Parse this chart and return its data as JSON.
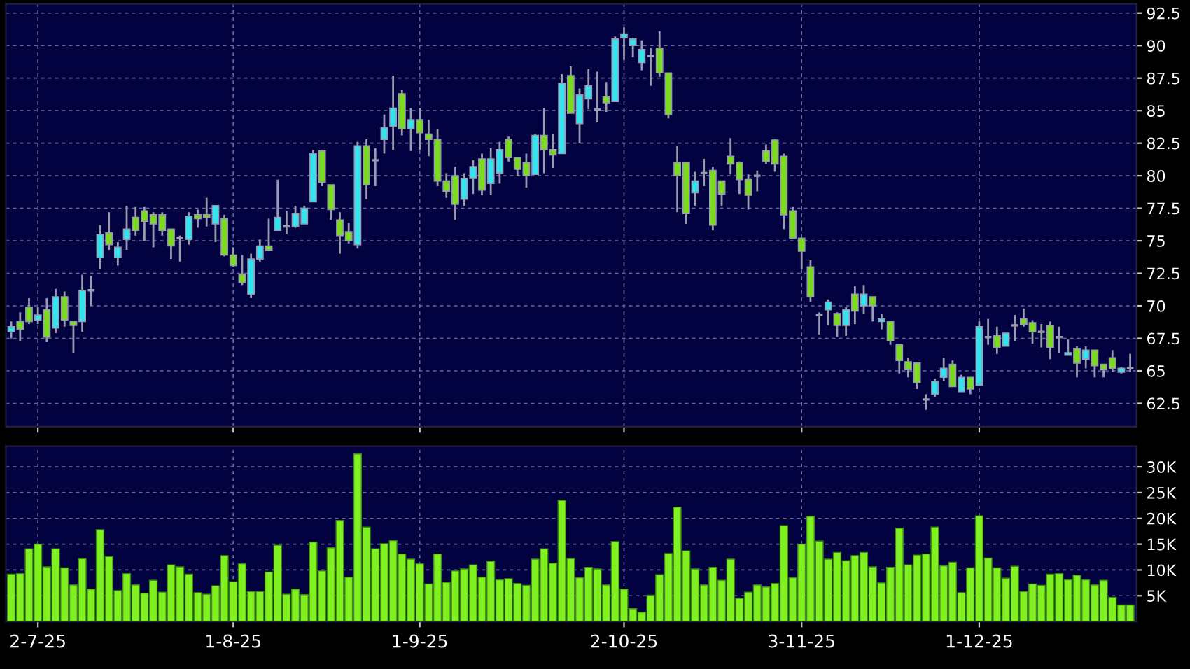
{
  "chart_data": [
    {
      "type": "candlestick",
      "tick_labels": "y",
      "grid": true,
      "colors": [
        "#33e3f0",
        "#7bdc1e",
        "#7bdc1e",
        "#33e3f0",
        "#7bdc1e",
        "#33e3f0",
        "#7bdc1e",
        "#7bdc1e",
        "#33e3f0",
        "#9a9ab0",
        "#33e3f0",
        "#7bdc1e",
        "#33e3f0",
        "#33e3f0",
        "#7bdc1e",
        "#7bdc1e",
        "#7bdc1e",
        "#7bdc1e",
        "#7bdc1e",
        "#9a9ab0",
        "#33e3f0",
        "#7bdc1e",
        "#7bdc1e",
        "#33e3f0",
        "#7bdc1e",
        "#7bdc1e",
        "#7bdc1e",
        "#33e3f0",
        "#33e3f0",
        "#7bdc1e",
        "#33e3f0",
        "#9a9ab0",
        "#33e3f0",
        "#33e3f0",
        "#33e3f0",
        "#7bdc1e",
        "#7bdc1e",
        "#7bdc1e",
        "#7bdc1e",
        "#33e3f0",
        "#7bdc1e",
        "#9a9ab0",
        "#33e3f0",
        "#33e3f0",
        "#7bdc1e",
        "#33e3f0",
        "#7bdc1e",
        "#7bdc1e",
        "#7bdc1e",
        "#7bdc1e",
        "#7bdc1e",
        "#33e3f0",
        "#33e3f0",
        "#7bdc1e",
        "#33e3f0",
        "#33e3f0",
        "#7bdc1e",
        "#7bdc1e",
        "#7bdc1e",
        "#33e3f0",
        "#7bdc1e",
        "#7bdc1e",
        "#33e3f0",
        "#7bdc1e",
        "#33e3f0",
        "#33e3f0",
        "#9a9ab0",
        "#7bdc1e",
        "#33e3f0",
        "#33e3f0",
        "#33e3f0",
        "#33e3f0",
        "#9a9ab0",
        "#7bdc1e",
        "#7bdc1e",
        "#7bdc1e",
        "#7bdc1e",
        "#33e3f0",
        "#9a9ab0",
        "#7bdc1e",
        "#7bdc1e",
        "#7bdc1e",
        "#7bdc1e",
        "#7bdc1e",
        "#9a9ab0",
        "#7bdc1e",
        "#7bdc1e",
        "#7bdc1e",
        "#7bdc1e",
        "#7bdc1e",
        "#7bdc1e",
        "#9a9ab0",
        "#33e3f0",
        "#7bdc1e",
        "#33e3f0",
        "#7bdc1e",
        "#33e3f0",
        "#7bdc1e",
        "#33e3f0",
        "#7bdc1e",
        "#7bdc1e",
        "#7bdc1e",
        "#7bdc1e",
        "#9a9ab0",
        "#33e3f0",
        "#33e3f0",
        "#7bdc1e",
        "#33e3f0",
        "#7bdc1e",
        "#33e3f0",
        "#9a9ab0",
        "#7bdc1e",
        "#33e3f0",
        "#9a9ab0",
        "#7bdc1e",
        "#7bdc1e",
        "#9a9ab0",
        "#7bdc1e",
        "#9a9ab0",
        "#33e3f0",
        "#7bdc1e",
        "#33e3f0",
        "#7bdc1e",
        "#7bdc1e",
        "#7bdc1e",
        "#33e3f0",
        "#9a9ab0"
      ],
      "categories": [
        null,
        null,
        null,
        null,
        null,
        null,
        null,
        null,
        null,
        null,
        null,
        null,
        null,
        null,
        null,
        null,
        null,
        null,
        null,
        null,
        null,
        null,
        null,
        null,
        null,
        null,
        null,
        null,
        null,
        null,
        null,
        null,
        null,
        null,
        null,
        null,
        null,
        null,
        null,
        null,
        null,
        null,
        null,
        null,
        null,
        null,
        null,
        null,
        null,
        null,
        null,
        null,
        null,
        null,
        null,
        null,
        null,
        null,
        null,
        null,
        null,
        null,
        null,
        null,
        null,
        null,
        null,
        null,
        null,
        null,
        null,
        null,
        null,
        null,
        null,
        null,
        null,
        null,
        null,
        null,
        null,
        null,
        null,
        null,
        null,
        null,
        null,
        null,
        null,
        null,
        null,
        null,
        null,
        null,
        null,
        null,
        null,
        null,
        null,
        null,
        null,
        null,
        null,
        null,
        null,
        null,
        null,
        null,
        null,
        null,
        null,
        null,
        null,
        null,
        null,
        null,
        null,
        null,
        null,
        null,
        null,
        null,
        null,
        null,
        null,
        null,
        null
      ],
      "ylim": [
        60.7,
        93.2
      ],
      "yticks": [
        62.5,
        65,
        67.5,
        70,
        72.5,
        75,
        77.5,
        80,
        82.5,
        85,
        87.5,
        90,
        92.5
      ],
      "ohlc": [
        [
          68.0,
          68.8,
          67.5,
          68.4
        ],
        [
          68.8,
          69.5,
          67.3,
          68.2
        ],
        [
          69.9,
          70.6,
          68.6,
          68.8
        ],
        [
          68.9,
          69.9,
          68.6,
          69.3
        ],
        [
          69.7,
          70.6,
          67.2,
          67.6
        ],
        [
          68.3,
          71.3,
          67.9,
          70.7
        ],
        [
          70.7,
          71.1,
          68.4,
          68.9
        ],
        [
          68.8,
          68.8,
          66.4,
          68.5
        ],
        [
          68.8,
          72.4,
          68.0,
          71.2
        ],
        [
          71.2,
          72.3,
          70.0,
          71.2
        ],
        [
          73.7,
          76.2,
          72.8,
          75.5
        ],
        [
          75.6,
          77.2,
          74.3,
          74.7
        ],
        [
          73.7,
          74.9,
          73.1,
          74.5
        ],
        [
          75.1,
          77.7,
          74.3,
          75.9
        ],
        [
          76.8,
          77.6,
          75.4,
          75.8
        ],
        [
          77.3,
          77.6,
          75.0,
          76.5
        ],
        [
          77.0,
          77.2,
          74.5,
          76.3
        ],
        [
          77.0,
          77.2,
          75.4,
          75.8
        ],
        [
          75.9,
          75.9,
          73.6,
          74.6
        ],
        [
          75.2,
          75.4,
          73.4,
          75.2
        ],
        [
          75.1,
          77.2,
          74.7,
          76.9
        ],
        [
          77.0,
          77.4,
          76.0,
          76.7
        ],
        [
          77.0,
          78.3,
          76.1,
          76.8
        ],
        [
          76.3,
          77.7,
          74.9,
          77.7
        ],
        [
          76.7,
          77.0,
          73.8,
          73.9
        ],
        [
          73.9,
          74.5,
          73.0,
          73.1
        ],
        [
          72.4,
          73.9,
          71.6,
          71.8
        ],
        [
          70.9,
          74.0,
          70.6,
          73.6
        ],
        [
          73.6,
          75.1,
          73.4,
          74.6
        ],
        [
          74.6,
          76.7,
          74.2,
          74.3
        ],
        [
          75.8,
          79.7,
          75.8,
          76.8
        ],
        [
          76.1,
          77.3,
          75.5,
          76.1
        ],
        [
          76.1,
          77.7,
          76.0,
          77.1
        ],
        [
          76.3,
          77.7,
          76.3,
          77.5
        ],
        [
          78.0,
          82.0,
          78.0,
          81.7
        ],
        [
          81.9,
          82.0,
          79.2,
          79.5
        ],
        [
          79.3,
          79.3,
          76.6,
          77.4
        ],
        [
          76.6,
          77.2,
          74.0,
          75.4
        ],
        [
          75.7,
          76.4,
          74.8,
          75.0
        ],
        [
          74.7,
          82.6,
          74.4,
          82.3
        ],
        [
          82.3,
          82.8,
          78.2,
          79.3
        ],
        [
          81.2,
          82.1,
          79.2,
          81.2
        ],
        [
          82.8,
          84.7,
          81.7,
          83.7
        ],
        [
          83.8,
          87.7,
          82.0,
          85.2
        ],
        [
          86.3,
          86.6,
          83.1,
          83.6
        ],
        [
          83.6,
          85.2,
          81.9,
          84.3
        ],
        [
          84.3,
          85.2,
          82.0,
          83.3
        ],
        [
          83.2,
          84.3,
          81.5,
          82.8
        ],
        [
          82.8,
          83.6,
          79.2,
          79.6
        ],
        [
          79.6,
          80.2,
          78.3,
          78.8
        ],
        [
          80.0,
          80.7,
          76.6,
          77.8
        ],
        [
          78.2,
          80.2,
          77.7,
          79.8
        ],
        [
          79.8,
          81.2,
          78.6,
          80.7
        ],
        [
          81.3,
          81.7,
          78.5,
          78.9
        ],
        [
          79.4,
          82.1,
          78.5,
          81.3
        ],
        [
          80.2,
          82.6,
          79.4,
          82.0
        ],
        [
          82.8,
          83.0,
          81.1,
          81.4
        ],
        [
          81.4,
          81.4,
          80.0,
          80.5
        ],
        [
          81.0,
          81.7,
          79.1,
          80.0
        ],
        [
          80.1,
          83.2,
          80.1,
          83.1
        ],
        [
          83.1,
          85.2,
          80.2,
          82.0
        ],
        [
          82.0,
          83.2,
          80.6,
          81.6
        ],
        [
          81.7,
          87.8,
          81.7,
          87.1
        ],
        [
          87.7,
          88.4,
          84.8,
          84.8
        ],
        [
          84.0,
          86.7,
          82.5,
          86.2
        ],
        [
          85.9,
          88.2,
          85.1,
          86.9
        ],
        [
          85.1,
          88.0,
          84.1,
          85.1
        ],
        [
          86.1,
          87.2,
          84.9,
          85.6
        ],
        [
          85.7,
          90.7,
          85.7,
          90.5
        ],
        [
          90.6,
          91.4,
          88.9,
          90.9
        ],
        [
          90.0,
          90.6,
          89.1,
          90.5
        ],
        [
          88.7,
          90.4,
          88.1,
          89.7
        ],
        [
          89.2,
          89.8,
          86.9,
          89.2
        ],
        [
          89.8,
          91.1,
          87.6,
          87.9
        ],
        [
          87.9,
          87.9,
          84.4,
          84.7
        ],
        [
          81.0,
          82.3,
          77.2,
          80.0
        ],
        [
          81.0,
          81.0,
          76.3,
          77.1
        ],
        [
          78.7,
          80.3,
          77.7,
          79.6
        ],
        [
          80.2,
          81.3,
          79.2,
          80.2
        ],
        [
          80.4,
          80.7,
          75.8,
          76.2
        ],
        [
          79.6,
          79.6,
          77.7,
          78.6
        ],
        [
          81.5,
          82.9,
          80.1,
          80.9
        ],
        [
          81.0,
          81.1,
          78.6,
          79.7
        ],
        [
          79.7,
          80.1,
          77.4,
          78.5
        ],
        [
          80.0,
          80.4,
          78.8,
          80.0
        ],
        [
          81.9,
          82.4,
          80.9,
          81.1
        ],
        [
          82.75,
          82.8,
          80.3,
          80.9
        ],
        [
          81.5,
          81.7,
          75.9,
          77.0
        ],
        [
          77.3,
          77.6,
          75.2,
          75.2
        ],
        [
          75.2,
          75.2,
          72.8,
          74.2
        ],
        [
          73.0,
          73.5,
          70.3,
          70.7
        ],
        [
          69.3,
          69.5,
          67.8,
          69.3
        ],
        [
          69.7,
          70.5,
          68.5,
          70.3
        ],
        [
          69.4,
          69.5,
          67.6,
          68.5
        ],
        [
          68.5,
          69.9,
          67.7,
          69.7
        ],
        [
          70.9,
          71.5,
          68.6,
          69.6
        ],
        [
          70.0,
          71.6,
          69.4,
          70.9
        ],
        [
          70.7,
          70.7,
          68.8,
          70.0
        ],
        [
          68.8,
          69.4,
          68.2,
          69.0
        ],
        [
          68.8,
          68.8,
          67.0,
          67.3
        ],
        [
          67.0,
          67.0,
          64.8,
          65.8
        ],
        [
          65.7,
          66.0,
          64.5,
          65.1
        ],
        [
          65.6,
          65.6,
          63.6,
          64.1
        ],
        [
          62.8,
          63.2,
          62.0,
          62.8
        ],
        [
          63.2,
          64.4,
          63.0,
          64.2
        ],
        [
          64.5,
          66.0,
          64.2,
          65.2
        ],
        [
          65.5,
          65.8,
          63.8,
          63.8
        ],
        [
          63.4,
          64.7,
          63.4,
          64.5
        ],
        [
          64.5,
          64.5,
          63.2,
          63.6
        ],
        [
          63.9,
          68.8,
          63.9,
          68.4
        ],
        [
          67.6,
          69.0,
          67.0,
          67.6
        ],
        [
          67.7,
          68.4,
          66.3,
          66.8
        ],
        [
          66.9,
          67.9,
          66.9,
          67.9
        ],
        [
          68.5,
          69.3,
          67.3,
          68.5
        ],
        [
          69.0,
          69.8,
          68.4,
          68.6
        ],
        [
          68.7,
          68.9,
          67.1,
          68.0
        ],
        [
          68.0,
          68.6,
          66.8,
          68.0
        ],
        [
          68.5,
          68.8,
          65.9,
          66.8
        ],
        [
          67.6,
          68.4,
          66.4,
          67.6
        ],
        [
          66.2,
          67.4,
          66.2,
          66.4
        ],
        [
          66.7,
          66.9,
          64.5,
          65.6
        ],
        [
          65.9,
          66.9,
          65.2,
          66.6
        ],
        [
          66.6,
          66.6,
          64.5,
          65.4
        ],
        [
          65.5,
          65.5,
          64.5,
          65.1
        ],
        [
          66.0,
          66.6,
          64.9,
          65.2
        ],
        [
          64.9,
          65.3,
          64.8,
          65.2
        ],
        [
          65.2,
          66.3,
          64.9,
          65.2
        ]
      ]
    },
    {
      "type": "bar",
      "grid": true,
      "color": "#80f020",
      "categories": [
        null,
        null,
        null,
        "2-7-25",
        null,
        null,
        null,
        null,
        null,
        null,
        null,
        null,
        null,
        null,
        null,
        null,
        null,
        null,
        null,
        null,
        null,
        null,
        null,
        null,
        null,
        "1-8-25",
        null,
        null,
        null,
        null,
        null,
        null,
        null,
        null,
        null,
        null,
        null,
        null,
        null,
        null,
        null,
        null,
        null,
        null,
        null,
        null,
        "1-9-25",
        null,
        null,
        null,
        null,
        null,
        null,
        null,
        null,
        null,
        null,
        null,
        null,
        null,
        null,
        null,
        null,
        null,
        null,
        null,
        null,
        null,
        null,
        "2-10-25",
        null,
        null,
        null,
        null,
        null,
        null,
        null,
        null,
        null,
        null,
        null,
        null,
        null,
        null,
        null,
        null,
        null,
        null,
        null,
        "3-11-25",
        null,
        null,
        null,
        null,
        null,
        null,
        null,
        null,
        null,
        null,
        null,
        null,
        null,
        null,
        null,
        null,
        null,
        null,
        null,
        "1-12-25",
        null,
        null,
        null,
        null,
        null,
        null,
        null,
        null,
        null,
        null,
        null,
        null,
        null,
        null,
        null,
        null,
        null
      ],
      "ylim": [
        0,
        34
      ],
      "yticks": [
        {
          "value": 5,
          "label": "5K"
        },
        {
          "value": 10,
          "label": "10K"
        },
        {
          "value": 15,
          "label": "15K"
        },
        {
          "value": 20,
          "label": "20K"
        },
        {
          "value": 25,
          "label": "25K"
        },
        {
          "value": 30,
          "label": "30K"
        }
      ],
      "values": [
        9.2,
        9.3,
        14.1,
        15.0,
        10.6,
        14.1,
        10.4,
        7.1,
        12.2,
        6.3,
        17.8,
        12.6,
        6.0,
        9.3,
        7.1,
        5.5,
        8.0,
        5.7,
        11.0,
        10.6,
        9.2,
        5.6,
        5.3,
        6.9,
        12.8,
        7.7,
        11.2,
        5.8,
        5.8,
        9.6,
        14.8,
        5.3,
        6.3,
        5.2,
        15.4,
        9.8,
        14.3,
        19.6,
        8.6,
        32.5,
        18.3,
        14.1,
        15.1,
        15.7,
        13.1,
        12.1,
        11.2,
        7.3,
        13.1,
        7.6,
        9.8,
        10.2,
        11.0,
        8.6,
        11.7,
        8.1,
        8.3,
        7.4,
        7.0,
        12.1,
        14.1,
        11.3,
        23.5,
        12.2,
        8.5,
        10.5,
        10.2,
        7.1,
        15.5,
        6.3,
        2.5,
        1.8,
        5.1,
        9.1,
        13.2,
        22.2,
        13.7,
        10.2,
        7.1,
        10.5,
        8.0,
        12.1,
        4.5,
        5.7,
        7.1,
        6.7,
        7.4,
        18.6,
        8.5,
        15.0,
        20.4,
        15.6,
        12.1,
        13.4,
        11.8,
        12.8,
        13.4,
        10.6,
        7.5,
        10.5,
        18.1,
        11.0,
        12.9,
        13.1,
        18.3,
        10.8,
        11.5,
        5.6,
        10.4,
        20.5,
        12.3,
        10.4,
        8.4,
        10.7,
        5.8,
        7.3,
        7.0,
        9.2,
        9.3,
        8.1,
        9.0,
        8.1,
        7.1,
        8.0,
        4.7,
        3.2,
        3.2
      ]
    }
  ]
}
